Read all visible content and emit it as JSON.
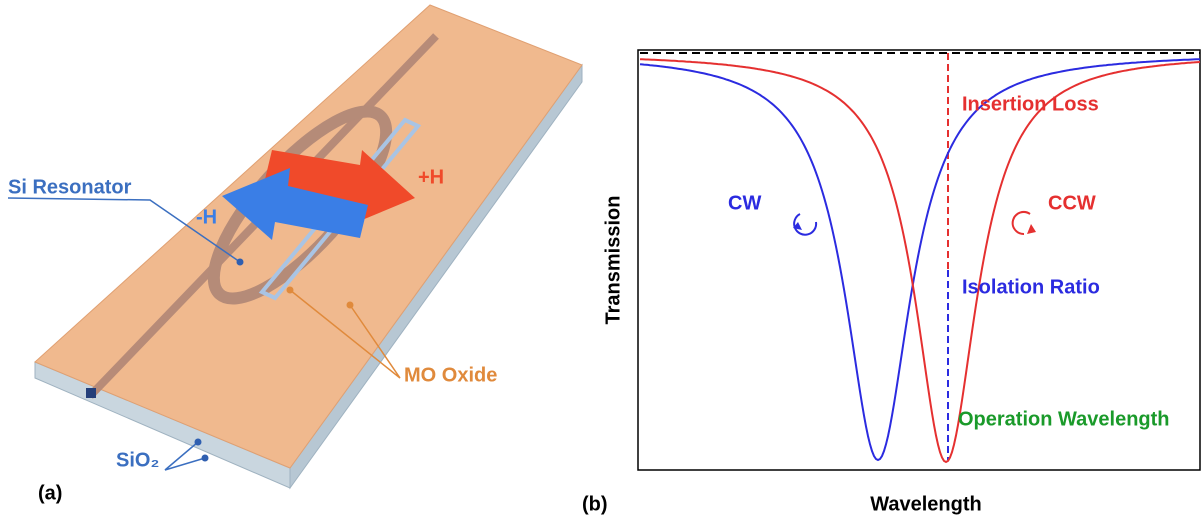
{
  "panel_a": {
    "label": "(a)",
    "si_resonator": "Si Resonator",
    "minus_h": "-H",
    "plus_h": "+H",
    "mo_oxide": "MO Oxide",
    "sio2": "SiO₂"
  },
  "panel_b": {
    "label": "(b)",
    "y_axis_label": "Transmission",
    "x_axis_label": "Wavelength",
    "insertion_loss": "Insertion Loss",
    "cw": "CW",
    "ccw": "CCW",
    "isolation_ratio": "Isolation Ratio",
    "operation_wavelength": "Operation Wavelength"
  }
}
